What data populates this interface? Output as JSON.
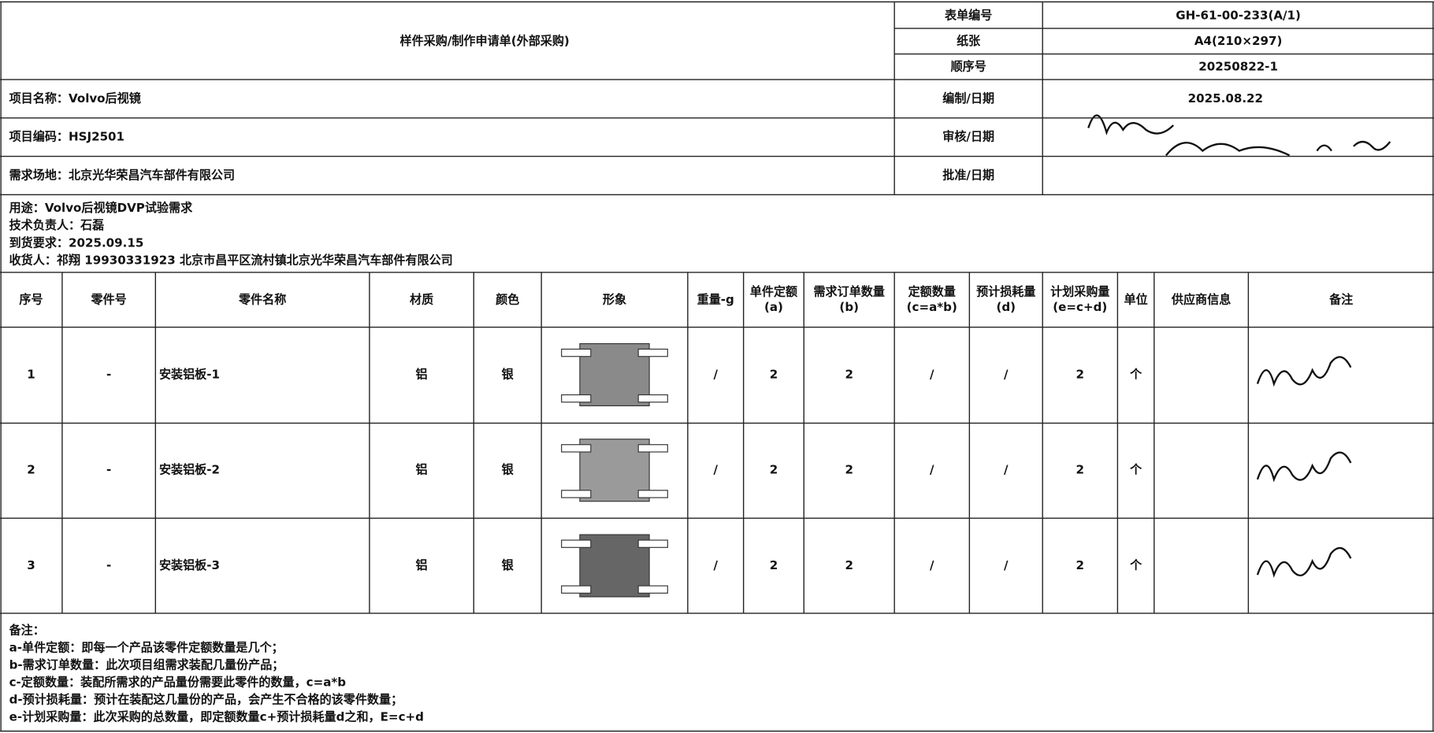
{
  "header": {
    "title": "样件采购/制作申请单(外部采购)",
    "meta": [
      [
        "表单编号",
        "GH-61-00-233(A/1)"
      ],
      [
        "纸张",
        "A4(210×297)"
      ],
      [
        "顺序号",
        "20250822-1"
      ]
    ]
  },
  "info": [
    {
      "text": "项目名称：Volvo后视镜",
      "label": "编制/日期",
      "value": "2025.08.22"
    },
    {
      "text": "项目编码：HSJ2501",
      "label": "审核/日期"
    },
    {
      "text": "需求场地：北京光华荣昌汽车部件有限公司",
      "label": "批准/日期"
    }
  ],
  "details": [
    "用途：Volvo后视镜DVP试验需求",
    "技术负责人：石磊",
    "到货要求：2025.09.15",
    "收货人：祁翔 19930331923 北京市昌平区流村镇北京光华荣昌汽车部件有限公司"
  ],
  "table": {
    "headers": [
      [
        "序号"
      ],
      [
        "零件号"
      ],
      [
        "零件名称"
      ],
      [
        "材质"
      ],
      [
        "颜色"
      ],
      [
        "形象"
      ],
      [
        "重量-g"
      ],
      [
        "单件定额",
        "(a)"
      ],
      [
        "需求订单数量",
        "(b)"
      ],
      [
        "定额数量",
        "(c=a*b)"
      ],
      [
        "预计损耗量",
        "(d)"
      ],
      [
        "计划采购量",
        "(e=c+d)"
      ],
      [
        "单位"
      ],
      [
        "供应商信息"
      ],
      [
        "备注"
      ]
    ],
    "rows": [
      [
        "1",
        "-",
        "安装铝板-1",
        "铝",
        "银",
        "/",
        "2",
        "2",
        "/",
        "/",
        "2",
        "个"
      ],
      [
        "2",
        "-",
        "安装铝板-2",
        "铝",
        "银",
        "/",
        "2",
        "2",
        "/",
        "/",
        "2",
        "个"
      ],
      [
        "3",
        "-",
        "安装铝板-3",
        "铝",
        "银",
        "/",
        "2",
        "2",
        "/",
        "/",
        "2",
        "个"
      ]
    ]
  },
  "notes": [
    "备注：",
    "a-单件定额：即每一个产品该零件定额数量是几个；",
    "b-需求订单数量：此次项目组需求装配几量份产品；",
    "c-定额数量：装配所需求的产品量份需要此零件的数量，c=a*b",
    "d-预计损耗量：预计在装配这几量份的产品，会产生不合格的该零件数量；",
    "e-计划采购量：此次采购的总数量，即定额数量c+预计损耗量d之和，E=c+d"
  ]
}
